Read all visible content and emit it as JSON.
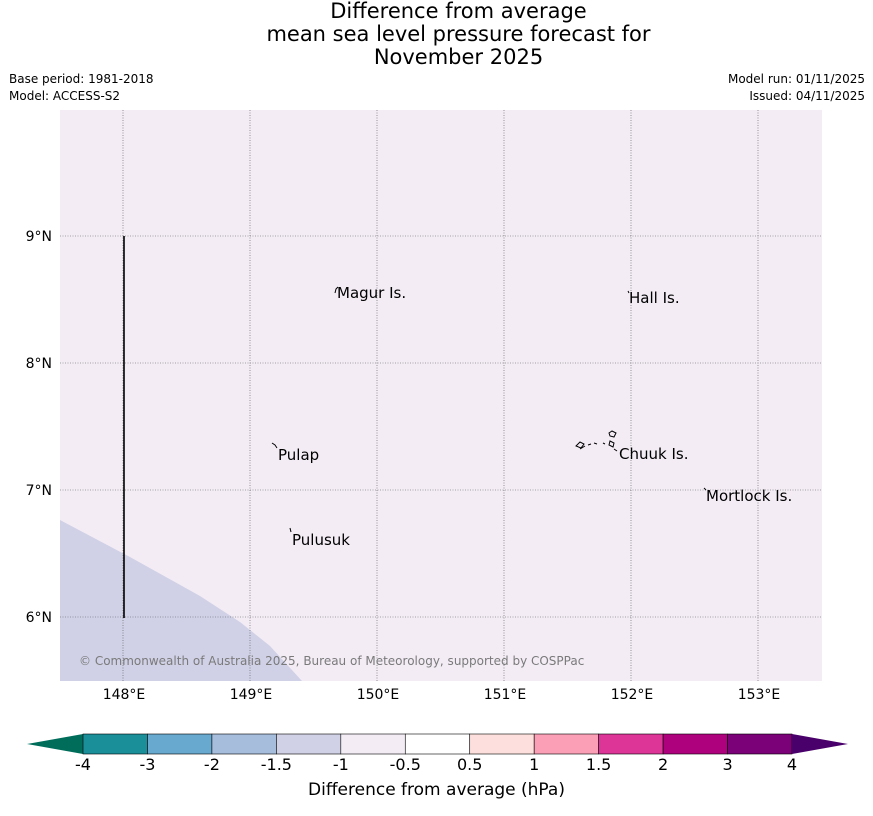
{
  "title": {
    "line1": "Difference from average",
    "line2": "mean sea level pressure forecast for",
    "line3": "November 2025"
  },
  "meta": {
    "base_period": "Base period: 1981-2018",
    "model": "Model: ACCESS-S2",
    "model_run": "Model run: 01/11/2025",
    "issued": "Issued: 04/11/2025"
  },
  "map": {
    "lat_labels": [
      "9°N",
      "8°N",
      "7°N",
      "6°N"
    ],
    "lon_labels": [
      "148°E",
      "149°E",
      "150°E",
      "151°E",
      "152°E",
      "153°E"
    ],
    "places": [
      "Magur Is.",
      "Hall Is.",
      "Pulap",
      "Chuuk Is.",
      "Mortlock Is.",
      "Pulusuk"
    ],
    "copyright": "© Commonwealth of Australia 2025, Bureau of Meteorology, supported by COSPPac",
    "colors": {
      "background_fill": "#f3ecf5",
      "lower_fill": "#d0d1e6"
    }
  },
  "colorbar": {
    "ticks": [
      "-4",
      "-3",
      "-2",
      "-1.5",
      "-1",
      "-0.5",
      "0.5",
      "1",
      "1.5",
      "2",
      "3",
      "4"
    ],
    "colors": [
      "#006d5b",
      "#1a8f9a",
      "#67a9cf",
      "#a6bddb",
      "#d0d1e6",
      "#f3ecf5",
      "#ffffff",
      "#fde0dd",
      "#fa9fb5",
      "#dd3497",
      "#ae017e",
      "#7a0177",
      "#49006a"
    ],
    "label": "Difference from average (hPa)"
  }
}
